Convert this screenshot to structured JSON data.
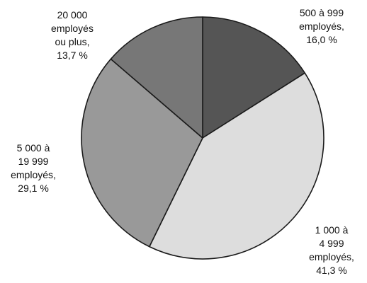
{
  "chart_data": {
    "type": "pie",
    "title": "",
    "categories": [
      "500 à 999 employés",
      "1 000 à 4 999 employés",
      "5 000 à 19 999 employés",
      "20 000 employés ou plus"
    ],
    "values": [
      16.0,
      41.3,
      29.1,
      13.7
    ],
    "value_labels": [
      "16,0 %",
      "41,3 %",
      "29,1 %",
      "13,7 %"
    ],
    "label_lines": [
      [
        "500 à 999",
        "employés,",
        "16,0 %"
      ],
      [
        "1 000 à",
        "4 999",
        "employés,",
        "41,3 %"
      ],
      [
        "5 000 à",
        "19 999",
        "employés,",
        "29,1 %"
      ],
      [
        "20 000",
        "employés",
        "ou plus,",
        "13,7 %"
      ]
    ],
    "colors": [
      "#555555",
      "#dddddd",
      "#999999",
      "#777777"
    ],
    "start_angle_deg": 0,
    "direction": "clockwise",
    "legend": "none"
  }
}
